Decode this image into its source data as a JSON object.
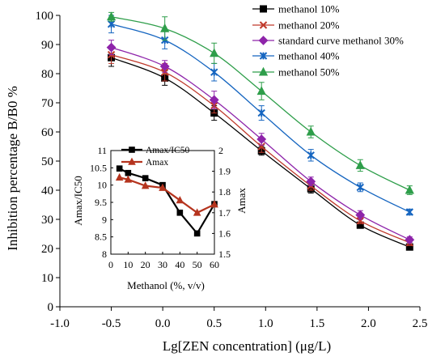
{
  "chart_data": [
    {
      "type": "line",
      "xlabel": "Lg[ZEN concentration] (μg/L)",
      "ylabel": "Inhibition percentage B/B0 %",
      "xlim": [
        -1.0,
        2.5
      ],
      "ylim": [
        0,
        100
      ],
      "xticks": [
        "-1.0",
        "-0.5",
        "0.0",
        "0.5",
        "1.0",
        "1.5",
        "2.0",
        "2.5"
      ],
      "yticks": [
        "0",
        "10",
        "20",
        "30",
        "40",
        "50",
        "60",
        "70",
        "80",
        "90",
        "100"
      ],
      "x": [
        -0.5,
        0.02,
        0.5,
        0.96,
        1.44,
        1.92,
        2.4
      ],
      "legend_position": "top-right",
      "series": [
        {
          "name": "methanol 10%",
          "color": "#000000",
          "marker": "square",
          "values": [
            85.5,
            78.5,
            66.5,
            53.5,
            40.5,
            28.0,
            20.5
          ],
          "errors": [
            3,
            2.5,
            2.5,
            1.5,
            1.5,
            1,
            1
          ]
        },
        {
          "name": "methanol 20%",
          "color": "#c0392b",
          "marker": "x",
          "values": [
            86.5,
            80.5,
            69.0,
            55.0,
            41.5,
            29.5,
            22.0
          ],
          "errors": [
            3,
            3,
            2.5,
            2,
            1.5,
            1,
            1
          ]
        },
        {
          "name": "standard curve methanol 30%",
          "color": "#8e24aa",
          "marker": "diamond",
          "values": [
            89.0,
            82.5,
            71.0,
            57.5,
            43.0,
            31.5,
            23.0
          ],
          "errors": [
            2.5,
            2,
            3,
            2,
            1.5,
            1.5,
            1
          ]
        },
        {
          "name": "methanol 40%",
          "color": "#1565c0",
          "marker": "star",
          "values": [
            97.0,
            91.5,
            80.5,
            66.5,
            52.0,
            41.0,
            32.5
          ],
          "errors": [
            3,
            3,
            3,
            2.5,
            2,
            1.5,
            1
          ]
        },
        {
          "name": "methanol 50%",
          "color": "#2e9e4a",
          "marker": "triangle",
          "values": [
            99.5,
            95.5,
            87.0,
            74.0,
            60.0,
            48.5,
            40.0
          ],
          "errors": [
            1.5,
            4,
            3.5,
            3,
            2,
            2,
            1.5
          ]
        }
      ]
    },
    {
      "type": "line",
      "xlabel": "Methanol  (%, v/v)",
      "ylabel": "Amax/IC50",
      "ylabel_right": "Amax",
      "xlim": [
        0,
        60
      ],
      "ylim": [
        8,
        11
      ],
      "ylim_right": [
        1.5,
        2.0
      ],
      "xticks": [
        "0",
        "10",
        "20",
        "30",
        "40",
        "50",
        "60"
      ],
      "yticks": [
        "8",
        "8.5",
        "9",
        "9.5",
        "10",
        "10.5",
        "11"
      ],
      "yticks_right": [
        "1.5",
        "1.6",
        "1.7",
        "1.8",
        "1.9",
        "2"
      ],
      "x": [
        5,
        10,
        20,
        30,
        40,
        50,
        60
      ],
      "legend_position": "top",
      "series": [
        {
          "name": "Amax/IC50",
          "color": "#000000",
          "marker": "square",
          "axis": "left",
          "values": [
            10.48,
            10.35,
            10.2,
            10.0,
            9.2,
            8.6,
            9.45
          ]
        },
        {
          "name": "Amax",
          "color": "#b5341e",
          "marker": "triangle",
          "axis": "right",
          "values": [
            1.87,
            1.86,
            1.83,
            1.82,
            1.76,
            1.7,
            1.74
          ]
        }
      ]
    }
  ]
}
